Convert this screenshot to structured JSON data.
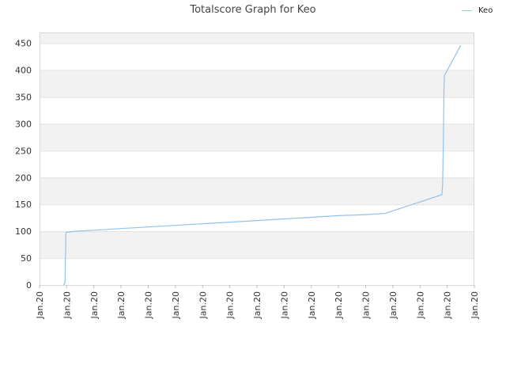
{
  "chart_data": {
    "type": "line",
    "title": "Totalscore Graph for Keo",
    "xlabel": "",
    "ylabel": "",
    "ylim": [
      0,
      470
    ],
    "yticks": [
      0,
      50,
      100,
      150,
      200,
      250,
      300,
      350,
      400,
      450
    ],
    "xticks": [
      "Jan.20",
      "Jan.20",
      "Jan.20",
      "Jan.20",
      "Jan.20",
      "Jan.20",
      "Jan.20",
      "Jan.20",
      "Jan.20",
      "Jan.20",
      "Jan.20",
      "Jan.20",
      "Jan.20",
      "Jan.20",
      "Jan.20",
      "Jan.20",
      "Jan.20"
    ],
    "grid": true,
    "legend_position": "top-right",
    "series": [
      {
        "name": "Keo",
        "color": "#90c3ee",
        "points": [
          [
            0.88,
            0
          ],
          [
            0.93,
            3
          ],
          [
            0.94,
            8
          ],
          [
            0.95,
            50
          ],
          [
            0.96,
            55
          ],
          [
            0.97,
            95
          ],
          [
            0.98,
            98
          ],
          [
            1.3,
            100
          ],
          [
            2.0,
            102
          ],
          [
            3.0,
            105
          ],
          [
            4.0,
            108
          ],
          [
            5.0,
            111
          ],
          [
            6.0,
            114
          ],
          [
            7.0,
            117
          ],
          [
            8.0,
            120
          ],
          [
            9.0,
            123
          ],
          [
            10.0,
            126
          ],
          [
            11.0,
            129
          ],
          [
            12.0,
            131
          ],
          [
            12.7,
            133
          ],
          [
            14.8,
            168
          ],
          [
            14.83,
            185
          ],
          [
            14.86,
            270
          ],
          [
            14.88,
            360
          ],
          [
            14.9,
            390
          ],
          [
            15.5,
            446
          ]
        ]
      }
    ]
  }
}
